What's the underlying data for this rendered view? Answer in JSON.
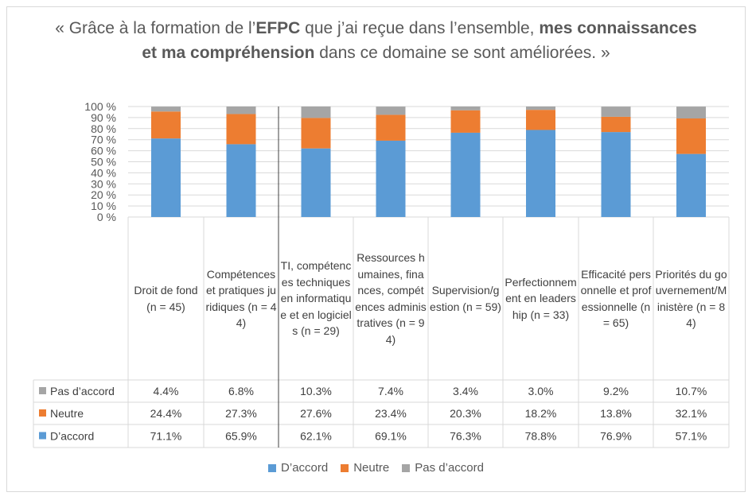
{
  "title": {
    "part1": "« Grâce à la formation de l’",
    "part2": "EFPC",
    "part3": " que j’ai reçue dans l’ensemble, ",
    "part4": "mes connaissances et ma compréhension",
    "part5": " dans ce domaine se sont améliorées. »"
  },
  "colors": {
    "d_accord": "#5b9bd5",
    "neutre": "#ed7d31",
    "pas_d_accord": "#a5a5a5",
    "grid": "#d9d9d9"
  },
  "chart_data": {
    "type": "bar",
    "stacked": true,
    "percent": true,
    "categories": [
      "Droit de fond (n = 45)",
      "Compétences et pratiques juridiques (n = 44)",
      "TI, compétences techniques en informatique et en logiciels (n = 29)",
      "Ressources humaines, finances, compétences administratives (n = 94)",
      "Supervision/gestion (n = 59)",
      "Perfectionnement en leadership (n = 33)",
      "Efficacité personnelle et professionnelle (n = 65)",
      "Priorités du gouvernement/Ministère (n = 84)"
    ],
    "series": [
      {
        "name": "D’accord",
        "values": [
          71.1,
          65.9,
          62.1,
          69.1,
          76.3,
          78.8,
          76.9,
          57.1
        ]
      },
      {
        "name": "Neutre",
        "values": [
          24.4,
          27.3,
          27.6,
          23.4,
          20.3,
          18.2,
          13.8,
          32.1
        ]
      },
      {
        "name": "Pas d’accord",
        "values": [
          4.4,
          6.8,
          10.3,
          7.4,
          3.4,
          3.0,
          9.2,
          10.7
        ]
      }
    ],
    "ylim": [
      0,
      100
    ],
    "yticks": [
      "0 %",
      "10 %",
      "20 %",
      "30 %",
      "40 %",
      "50 %",
      "60 %",
      "70 %",
      "80 %",
      "90 %",
      "100 %"
    ],
    "table_rows": [
      {
        "label": "Pas d’accord",
        "values": [
          "4.4%",
          "6.8%",
          "10.3%",
          "7.4%",
          "3.4%",
          "3.0%",
          "9.2%",
          "10.7%"
        ]
      },
      {
        "label": "Neutre",
        "values": [
          "24.4%",
          "27.3%",
          "27.6%",
          "23.4%",
          "20.3%",
          "18.2%",
          "13.8%",
          "32.1%"
        ]
      },
      {
        "label": "D’accord",
        "values": [
          "71.1%",
          "65.9%",
          "62.1%",
          "69.1%",
          "76.3%",
          "78.8%",
          "76.9%",
          "57.1%"
        ]
      }
    ],
    "legend": [
      "D’accord",
      "Neutre",
      "Pas d’accord"
    ],
    "legend_position": "bottom",
    "grid": true
  }
}
